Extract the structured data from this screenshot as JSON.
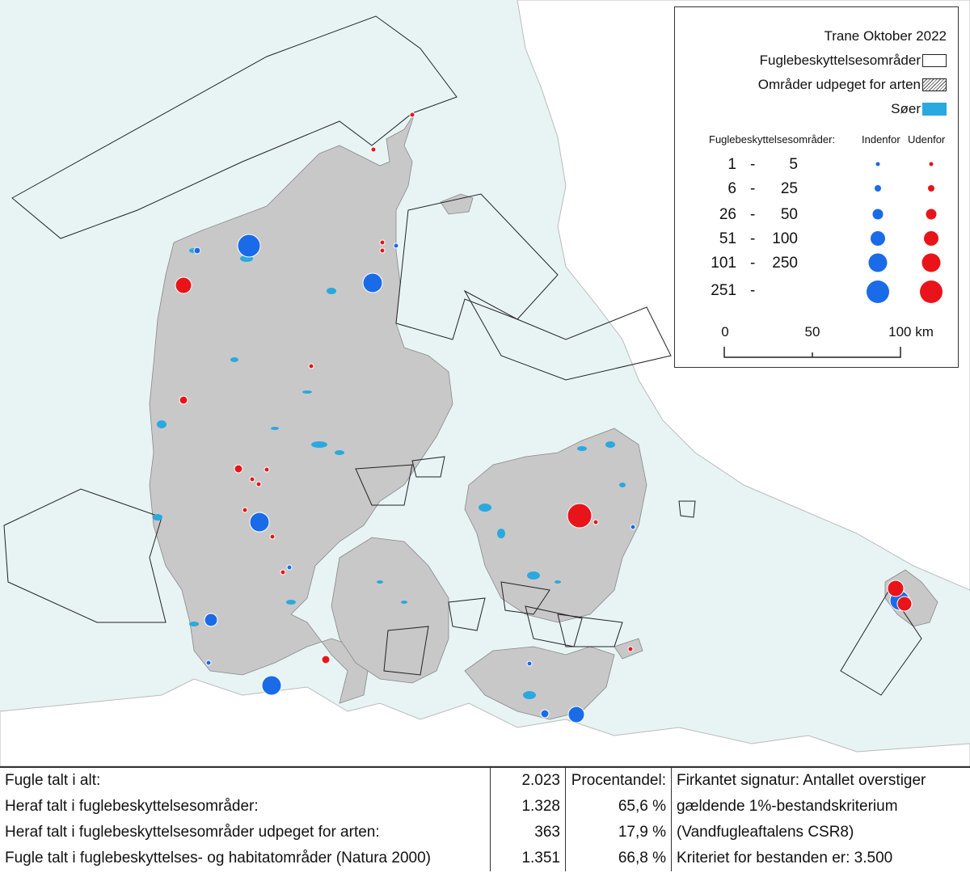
{
  "legend": {
    "title": "Trane Oktober 2022",
    "items": [
      {
        "label": "Fuglebeskyttelsesområder"
      },
      {
        "label": "Områder udpeget for arten"
      },
      {
        "label": "Søer"
      }
    ],
    "header_label": "Fuglebeskyttelsesområder:",
    "inside_label": "Indenfor",
    "outside_label": "Udenfor",
    "classes": [
      {
        "from": "1",
        "to": "5"
      },
      {
        "from": "6",
        "to": "25"
      },
      {
        "from": "26",
        "to": "50"
      },
      {
        "from": "51",
        "to": "100"
      },
      {
        "from": "101",
        "to": "250"
      },
      {
        "from": "251",
        "to": ""
      }
    ],
    "dash": "-",
    "scale_labels": [
      "0",
      "50",
      "100 km"
    ],
    "colors": {
      "inside": "#1a6be8",
      "outside": "#e8141a",
      "lakes": "#2aa8e0",
      "land": "#c8c8c8",
      "sea": "#e8f4f4"
    }
  },
  "stats": {
    "rows": [
      {
        "label": "Fugle talt i alt:",
        "value": "2.023",
        "percent": "Procentandel:",
        "note": "Firkantet signatur: Antallet overstiger"
      },
      {
        "label": "Heraf talt i fuglebeskyttelsesområder:",
        "value": "1.328",
        "percent": "65,6 %",
        "note": "gældende 1%-bestandskriterium"
      },
      {
        "label": "Heraf talt i fuglebeskyttelsesområder udpeget for arten:",
        "value": "363",
        "percent": "17,9 %",
        "note": "(Vandfugleaftalens CSR8)"
      },
      {
        "label": "Fugle talt i fuglebeskyttelses- og habitatområder (Natura 2000)",
        "value": "1.351",
        "percent": "66,8 %",
        "note": "Kriteriet for bestanden er: 3.500"
      }
    ]
  }
}
